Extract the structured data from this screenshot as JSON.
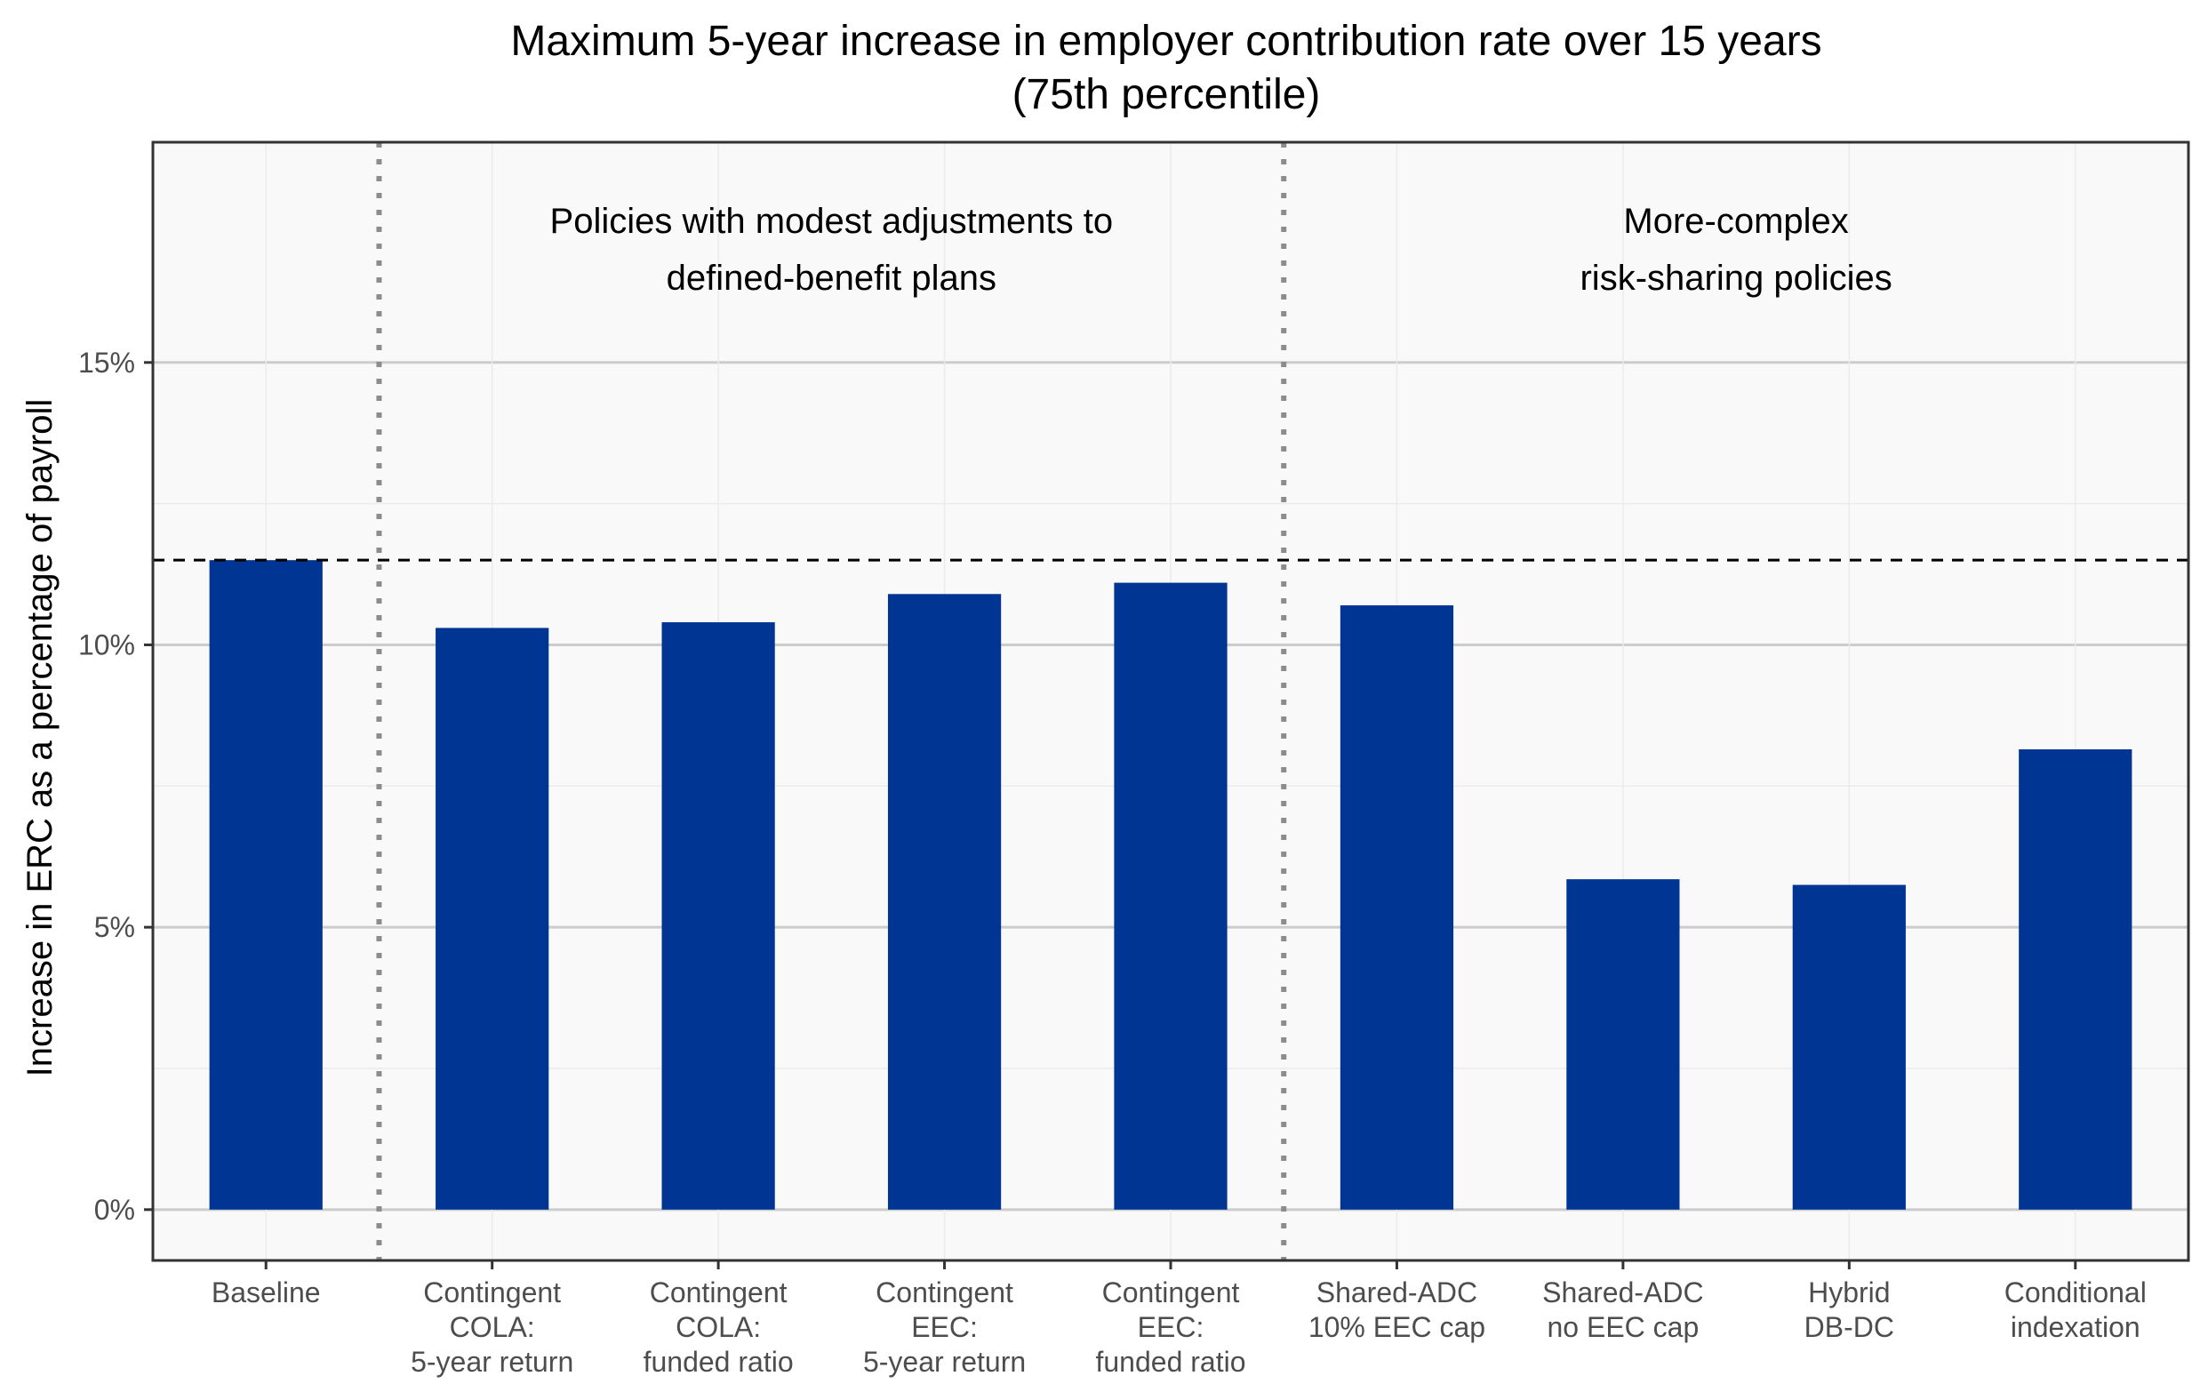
{
  "chart_data": {
    "type": "bar",
    "title": [
      "Maximum 5-year increase in employer contribution rate over 15 years",
      "(75th percentile)"
    ],
    "ylabel": "Increase in ERC as a percentage of payroll",
    "xlabel": "",
    "categories": [
      [
        "Baseline"
      ],
      [
        "Contingent",
        "COLA:",
        "5-year return"
      ],
      [
        "Contingent",
        "COLA:",
        "funded ratio"
      ],
      [
        "Contingent",
        "EEC:",
        "5-year return"
      ],
      [
        "Contingent",
        "EEC:",
        "funded ratio"
      ],
      [
        "Shared-ADC",
        "10% EEC cap"
      ],
      [
        "Shared-ADC",
        "no EEC cap"
      ],
      [
        "Hybrid",
        "DB-DC"
      ],
      [
        "Conditional",
        "indexation"
      ]
    ],
    "values": [
      11.5,
      10.3,
      10.4,
      10.9,
      11.1,
      10.7,
      5.85,
      5.75,
      8.15
    ],
    "ylim": [
      -0.9,
      18.9
    ],
    "yticks": [
      0,
      5,
      10,
      15
    ],
    "ytick_labels": [
      "0%",
      "5%",
      "10%",
      "15%"
    ],
    "reference_line": {
      "value": 11.5,
      "style": "dashed"
    },
    "group_dividers_after_index": [
      0,
      4
    ],
    "group_labels": [
      {
        "lines": [
          "Policies with modest adjustments to",
          "defined-benefit plans"
        ],
        "span": [
          1,
          4
        ]
      },
      {
        "lines": [
          "More-complex",
          "risk-sharing policies"
        ],
        "span": [
          5,
          8
        ]
      }
    ],
    "grid": true,
    "legend": "none",
    "colors": {
      "bar": "#003594",
      "panel": "#f9f9f9",
      "grid_major": "#cccccc",
      "grid_minor": "#ebebeb",
      "divider": "#8c8c8c"
    }
  }
}
